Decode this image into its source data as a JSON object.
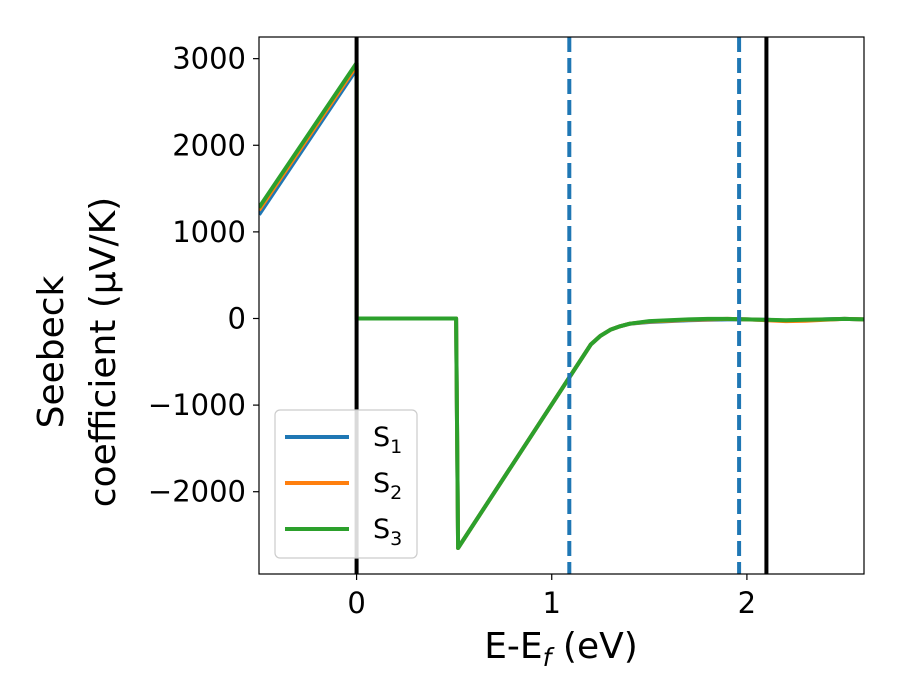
{
  "chart_data": {
    "type": "line",
    "xlabel": "E-E",
    "xlabel_sub": "f",
    "xlabel_unit": " (eV)",
    "ylabel_line1": "Seebeck",
    "ylabel_line2": "coefficient  (μV/K)",
    "xlim": [
      -0.5,
      2.6
    ],
    "ylim": [
      -2950,
      3250
    ],
    "xticks": [
      0,
      1,
      2
    ],
    "xtick_labels": [
      "0",
      "1",
      "2"
    ],
    "yticks": [
      3000,
      2000,
      1000,
      0,
      -1000,
      -2000
    ],
    "ytick_labels": [
      "3000",
      "2000",
      "1000",
      "0",
      "−1000",
      "−2000"
    ],
    "grid": false,
    "legend_position": "lower-left",
    "series": [
      {
        "name": "S",
        "name_sub": "1",
        "color": "#1f77b4",
        "x": [
          -0.5,
          0.0,
          0.0,
          0.51,
          0.52,
          1.2,
          1.25,
          1.3,
          1.35,
          1.4,
          1.5,
          1.6,
          1.7,
          1.8,
          1.9,
          2.0,
          2.1,
          2.2,
          2.3,
          2.4,
          2.5,
          2.6
        ],
        "y": [
          1200,
          2880,
          0,
          0,
          -2650,
          -300,
          -200,
          -130,
          -90,
          -60,
          -40,
          -30,
          -20,
          -15,
          -10,
          -10,
          -15,
          -25,
          -20,
          -10,
          -5,
          -10
        ]
      },
      {
        "name": "S",
        "name_sub": "2",
        "color": "#ff7f0e",
        "x": [
          -0.5,
          0.0,
          0.0,
          0.51,
          0.52,
          1.2,
          1.25,
          1.3,
          1.35,
          1.4,
          1.5,
          1.6,
          1.7,
          1.8,
          1.9,
          2.0,
          2.1,
          2.2,
          2.3,
          2.4,
          2.5,
          2.6
        ],
        "y": [
          1250,
          2920,
          0,
          0,
          -2650,
          -300,
          -200,
          -130,
          -90,
          -60,
          -35,
          -25,
          -15,
          -10,
          -5,
          -10,
          -20,
          -30,
          -25,
          -15,
          -5,
          -10
        ]
      },
      {
        "name": "S",
        "name_sub": "3",
        "color": "#2ca02c",
        "x": [
          -0.5,
          0.0,
          0.0,
          0.51,
          0.52,
          1.2,
          1.25,
          1.3,
          1.35,
          1.4,
          1.5,
          1.6,
          1.7,
          1.8,
          1.9,
          2.0,
          2.1,
          2.2,
          2.3,
          2.4,
          2.5,
          2.6
        ],
        "y": [
          1280,
          2950,
          0,
          0,
          -2650,
          -300,
          -200,
          -130,
          -90,
          -60,
          -30,
          -20,
          -10,
          -5,
          -5,
          -10,
          -15,
          -20,
          -15,
          -10,
          -5,
          -10
        ]
      }
    ],
    "vlines": [
      {
        "x": 0.0,
        "color": "#000000",
        "style": "solid"
      },
      {
        "x": 2.1,
        "color": "#000000",
        "style": "solid"
      },
      {
        "x": 1.09,
        "color": "#1f77b4",
        "style": "dashed"
      },
      {
        "x": 1.96,
        "color": "#1f77b4",
        "style": "dashed"
      }
    ]
  }
}
